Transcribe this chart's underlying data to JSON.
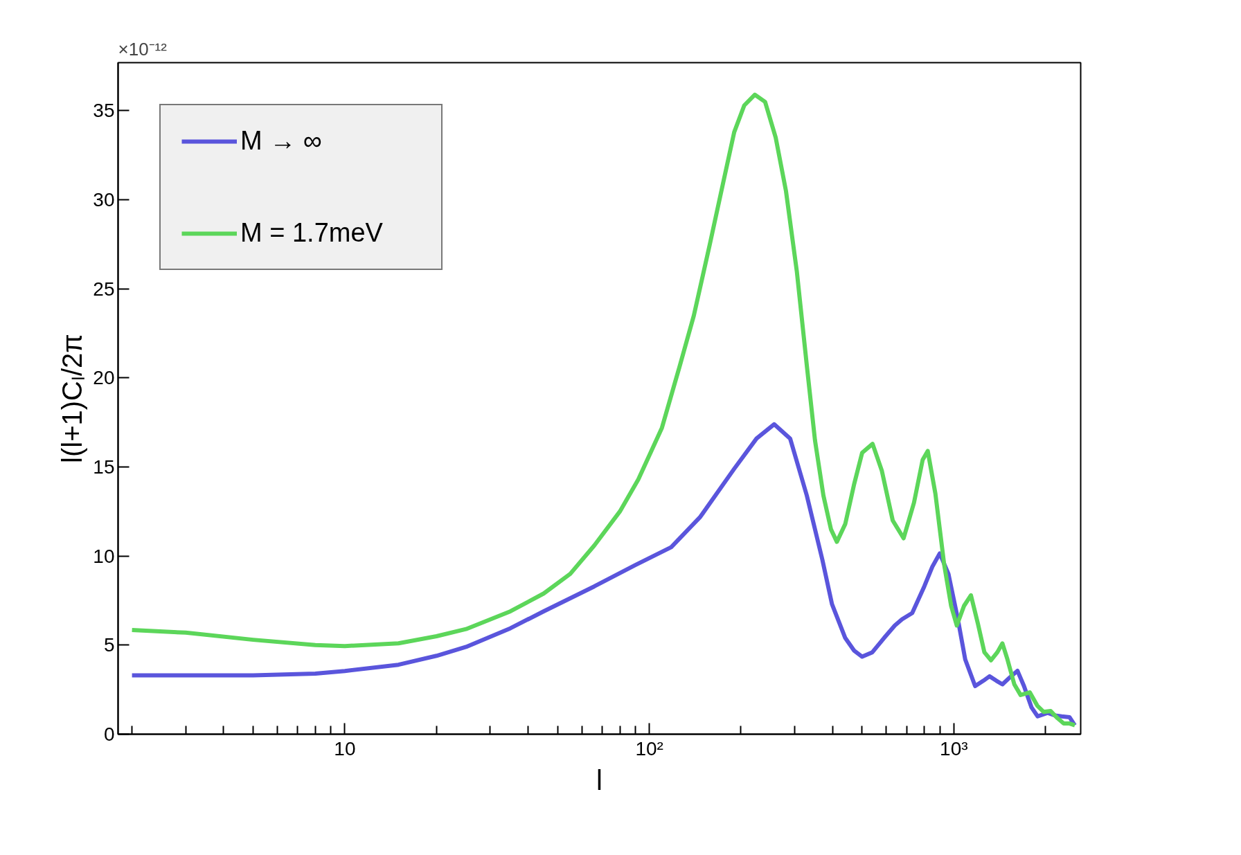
{
  "chart_data": {
    "type": "line",
    "xlabel": "l",
    "ylabel": "l(l+1)Cₗ/2π",
    "annotations": [
      "×10⁻¹²"
    ],
    "log": "x",
    "grid": false,
    "legend": "top left",
    "line_style": "solid",
    "marker": "none",
    "xlim": [
      1.8,
      2610
    ],
    "ylim": [
      0,
      37.7
    ],
    "xticks": [
      {
        "value": 2,
        "label": null
      },
      {
        "value": 3,
        "label": null
      },
      {
        "value": 4,
        "label": null
      },
      {
        "value": 5,
        "label": null
      },
      {
        "value": 6,
        "label": null
      },
      {
        "value": 7,
        "label": null
      },
      {
        "value": 8,
        "label": null
      },
      {
        "value": 9,
        "label": null
      },
      {
        "value": 10,
        "label": "10"
      },
      {
        "value": 20,
        "label": null
      },
      {
        "value": 30,
        "label": null
      },
      {
        "value": 40,
        "label": null
      },
      {
        "value": 50,
        "label": null
      },
      {
        "value": 60,
        "label": null
      },
      {
        "value": 70,
        "label": null
      },
      {
        "value": 80,
        "label": null
      },
      {
        "value": 90,
        "label": null
      },
      {
        "value": 100,
        "label": "10²"
      },
      {
        "value": 200,
        "label": null
      },
      {
        "value": 300,
        "label": null
      },
      {
        "value": 400,
        "label": null
      },
      {
        "value": 500,
        "label": null
      },
      {
        "value": 600,
        "label": null
      },
      {
        "value": 700,
        "label": null
      },
      {
        "value": 800,
        "label": null
      },
      {
        "value": 900,
        "label": null
      },
      {
        "value": 1000,
        "label": "10³"
      },
      {
        "value": 2000,
        "label": null
      }
    ],
    "yticks": [
      0,
      5,
      10,
      15,
      20,
      25,
      30,
      35
    ],
    "series": [
      {
        "name": "M → ∞",
        "color": "#5a55dc",
        "x": [
          2,
          3,
          5,
          8,
          10,
          15,
          20,
          25,
          35,
          45,
          66,
          90,
          118,
          147,
          190,
          225,
          257,
          290,
          329,
          370,
          398,
          440,
          470,
          500,
          540,
          590,
          640,
          676,
          730,
          800,
          850,
          899,
          960,
          1030,
          1090,
          1175,
          1250,
          1310,
          1380,
          1444,
          1530,
          1618,
          1700,
          1800,
          1885,
          2033,
          2150,
          2260,
          2400,
          2497
        ],
        "values": [
          3.3,
          3.3,
          3.3,
          3.4,
          3.55,
          3.9,
          4.4,
          4.9,
          5.95,
          6.9,
          8.3,
          9.5,
          10.5,
          12.2,
          14.9,
          16.6,
          17.4,
          16.6,
          13.4,
          9.8,
          7.3,
          5.4,
          4.7,
          4.35,
          4.6,
          5.4,
          6.1,
          6.45,
          6.8,
          8.3,
          9.4,
          10.15,
          9.0,
          6.5,
          4.2,
          2.7,
          3.0,
          3.25,
          3.0,
          2.8,
          3.2,
          3.56,
          2.7,
          1.5,
          1.0,
          1.2,
          1.05,
          1.0,
          0.95,
          0.5
        ]
      },
      {
        "name": "M = 1.7meV",
        "color": "#5cd65a",
        "x": [
          2,
          3,
          5,
          8,
          10,
          15,
          20,
          25,
          35,
          45,
          55,
          66,
          80,
          92,
          110,
          126,
          140,
          158,
          175,
          190,
          205,
          222,
          240,
          260,
          281,
          305,
          329,
          350,
          373,
          395,
          413,
          440,
          470,
          500,
          541,
          580,
          630,
          684,
          740,
          790,
          821,
          870,
          930,
          980,
          1023,
          1080,
          1138,
          1200,
          1260,
          1325,
          1390,
          1444,
          1500,
          1580,
          1657,
          1776,
          1880,
          1974,
          2080,
          2190,
          2296,
          2400,
          2497
        ],
        "values": [
          5.85,
          5.7,
          5.3,
          5.0,
          4.95,
          5.1,
          5.5,
          5.9,
          6.9,
          7.9,
          9.0,
          10.6,
          12.5,
          14.3,
          17.2,
          20.7,
          23.5,
          27.5,
          31.0,
          33.8,
          35.3,
          35.9,
          35.5,
          33.5,
          30.5,
          26.0,
          20.7,
          16.5,
          13.4,
          11.5,
          10.8,
          11.8,
          14.0,
          15.8,
          16.3,
          14.8,
          12.0,
          11.0,
          13.0,
          15.4,
          15.9,
          13.5,
          9.5,
          7.2,
          6.1,
          7.2,
          7.8,
          6.2,
          4.6,
          4.15,
          4.6,
          5.1,
          4.2,
          2.8,
          2.2,
          2.35,
          1.6,
          1.25,
          1.3,
          0.9,
          0.6,
          0.6,
          0.5
        ]
      }
    ]
  }
}
